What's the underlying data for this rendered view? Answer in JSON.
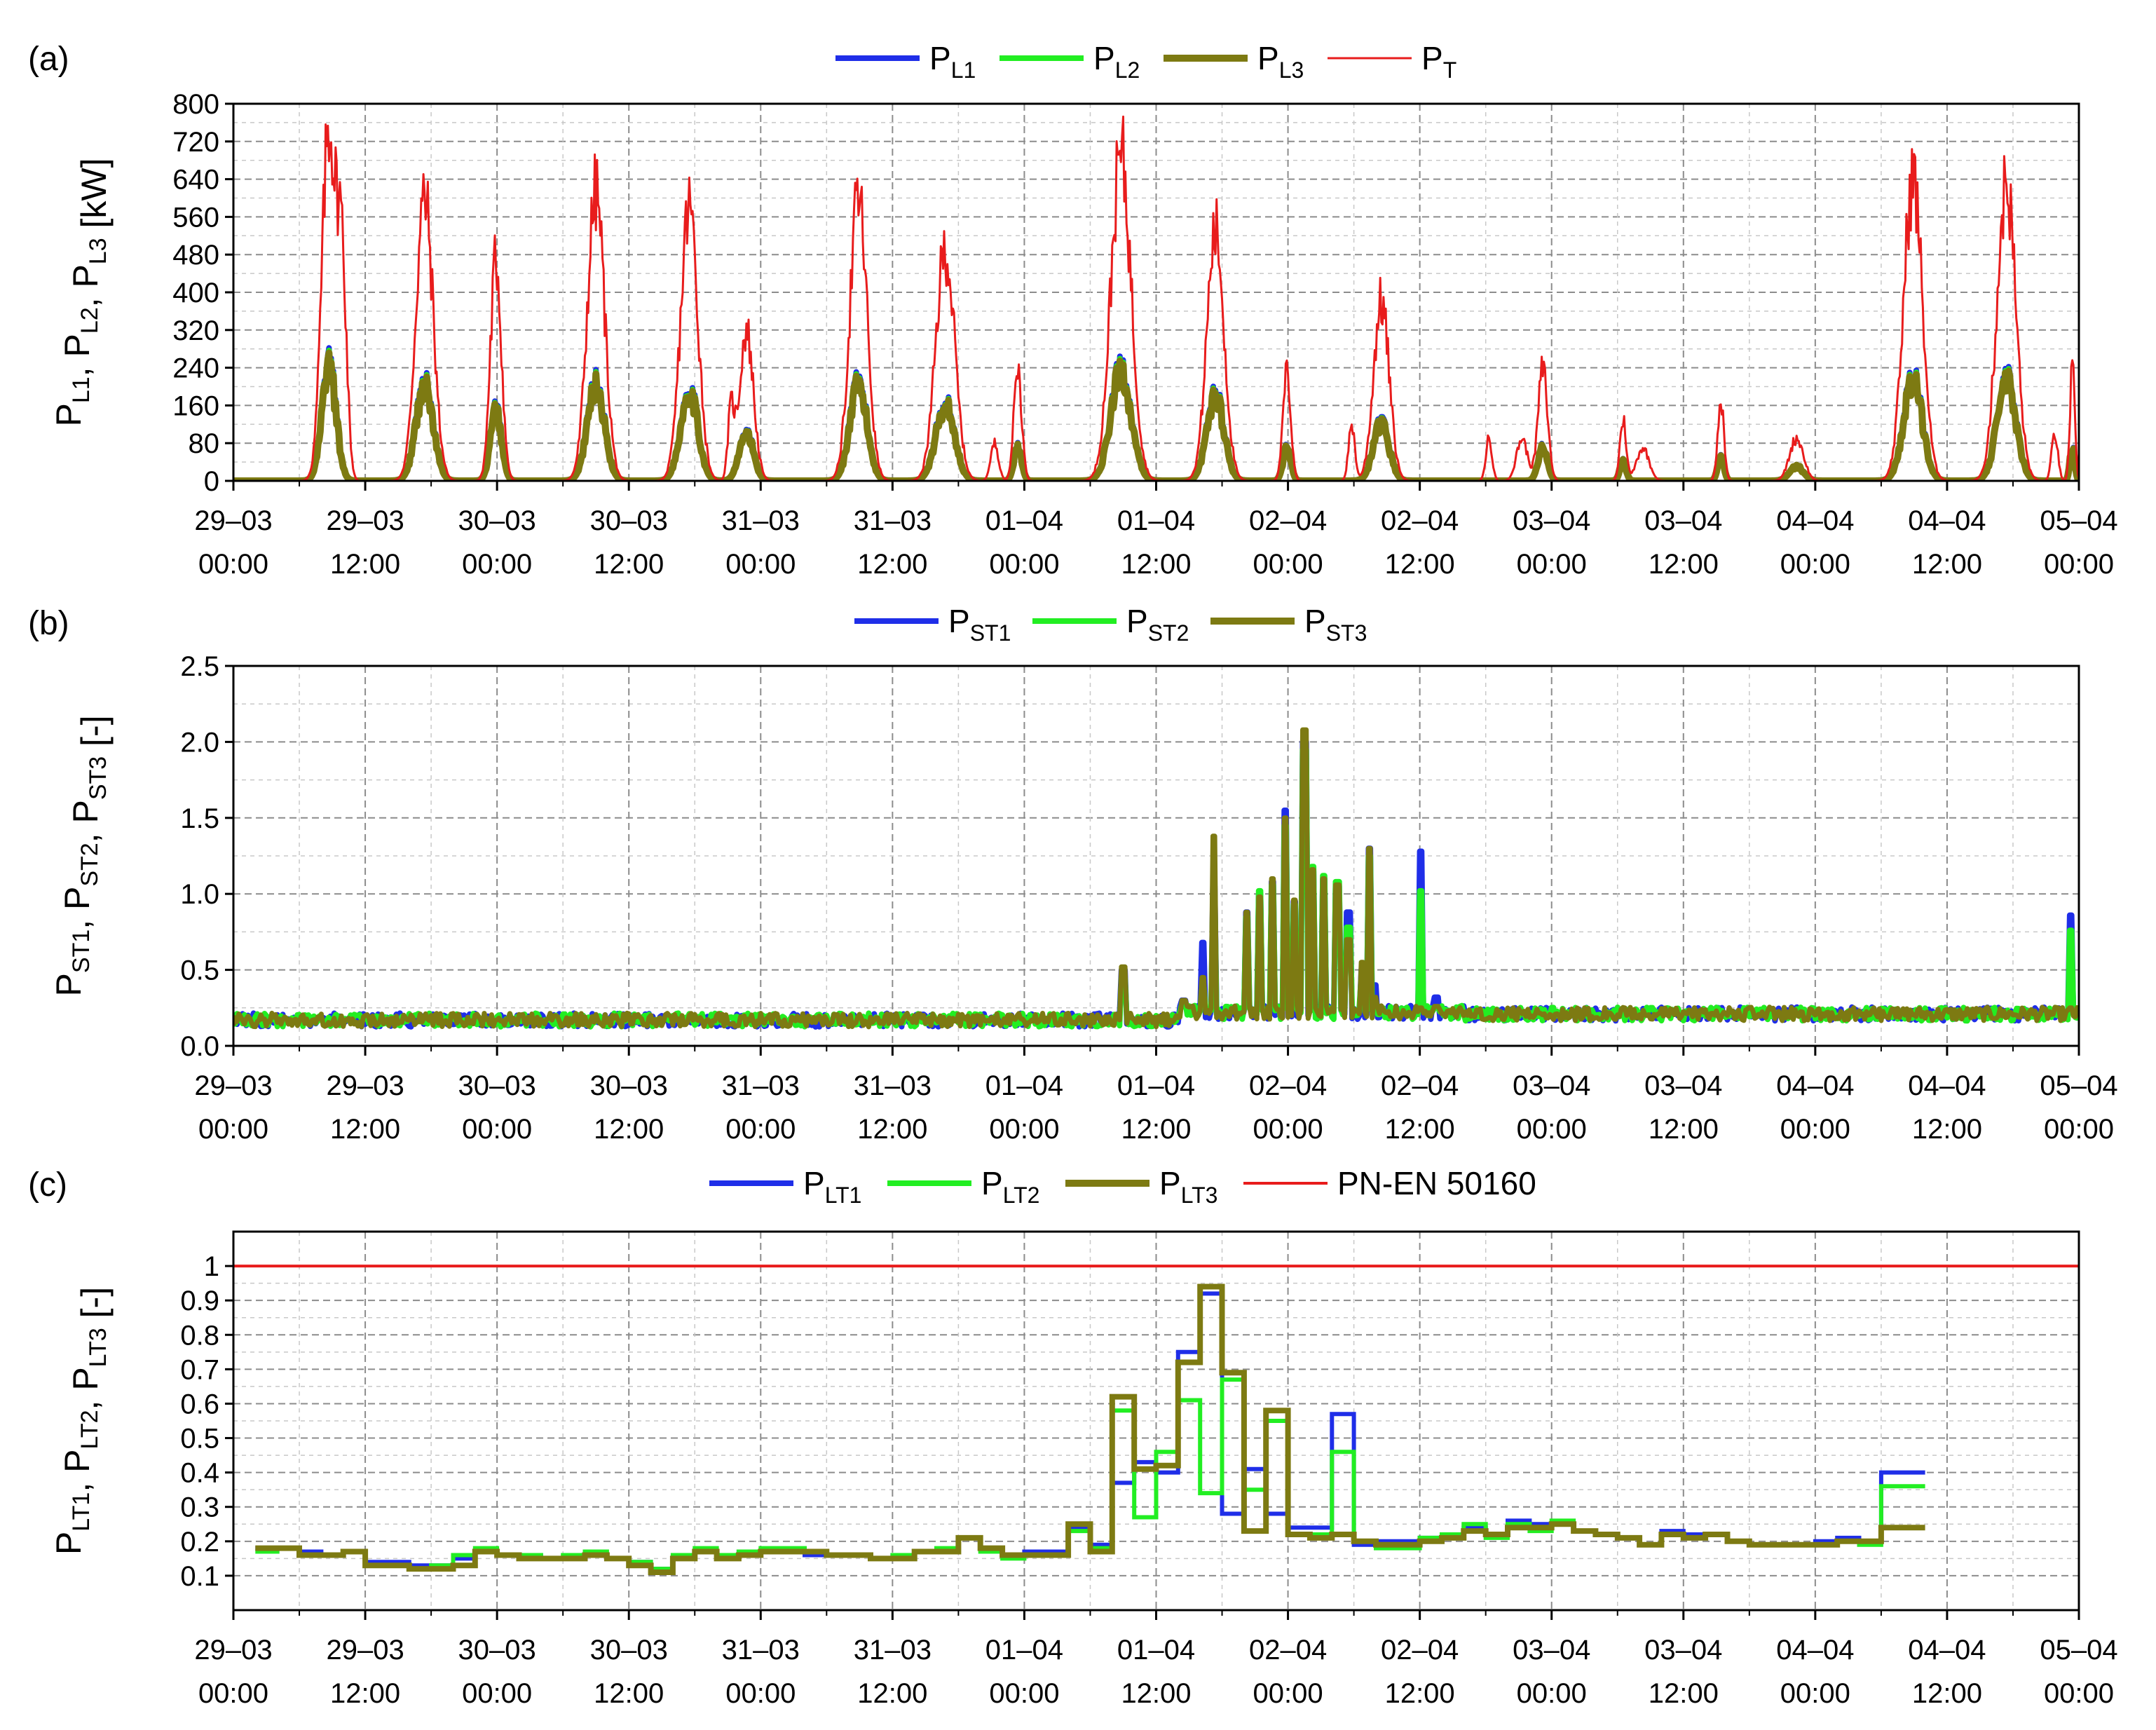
{
  "colors": {
    "L1": "#1f2ee8",
    "L2": "#22ee22",
    "L3": "#7d7a12",
    "T": "#e81c1c",
    "limit": "#e81c1c",
    "grid": "#8c8c8c",
    "grid_minor": "#c8c8c8"
  },
  "time_axis": {
    "xlim": [
      0,
      168
    ],
    "unit": "hours from 29-03 00:00",
    "ticks": [
      {
        "x": 0,
        "date": "29–03",
        "time": "00:00"
      },
      {
        "x": 12,
        "date": "29–03",
        "time": "12:00"
      },
      {
        "x": 24,
        "date": "30–03",
        "time": "00:00"
      },
      {
        "x": 36,
        "date": "30–03",
        "time": "12:00"
      },
      {
        "x": 48,
        "date": "31–03",
        "time": "00:00"
      },
      {
        "x": 60,
        "date": "31–03",
        "time": "12:00"
      },
      {
        "x": 72,
        "date": "01–04",
        "time": "00:00"
      },
      {
        "x": 84,
        "date": "01–04",
        "time": "12:00"
      },
      {
        "x": 96,
        "date": "02–04",
        "time": "00:00"
      },
      {
        "x": 108,
        "date": "02–04",
        "time": "12:00"
      },
      {
        "x": 120,
        "date": "03–04",
        "time": "00:00"
      },
      {
        "x": 132,
        "date": "03–04",
        "time": "12:00"
      },
      {
        "x": 144,
        "date": "04–04",
        "time": "00:00"
      },
      {
        "x": 156,
        "date": "04–04",
        "time": "12:00"
      },
      {
        "x": 168,
        "date": "05–04",
        "time": "00:00"
      }
    ]
  },
  "chart_data": [
    {
      "id": "a",
      "panel_label": "(a)",
      "type": "line",
      "ylabel_parts": [
        [
          "P",
          "L1"
        ],
        [
          ", P",
          "L2"
        ],
        [
          ", P",
          "L3"
        ],
        [
          " [kW]",
          ""
        ]
      ],
      "ylim": [
        0,
        800
      ],
      "yticks": [
        0,
        80,
        160,
        240,
        320,
        400,
        480,
        560,
        640,
        720,
        800
      ],
      "legend": [
        {
          "key": "L1",
          "base": "P",
          "sub": "L1",
          "width": 8
        },
        {
          "key": "L2",
          "base": "P",
          "sub": "L2",
          "width": 8
        },
        {
          "key": "L3",
          "base": "P",
          "sub": "L3",
          "width": 10
        },
        {
          "key": "T",
          "base": "P",
          "sub": "T",
          "width": 3
        }
      ],
      "series": [
        {
          "key": "T",
          "name": "P_T",
          "width": 3,
          "peaks": [
            {
              "t": 8.7,
              "v": 750,
              "w": 0.9
            },
            {
              "t": 9.9,
              "v": 420,
              "w": 0.6
            },
            {
              "t": 17.4,
              "v": 600,
              "w": 1.1
            },
            {
              "t": 23.9,
              "v": 470,
              "w": 0.7
            },
            {
              "t": 33.0,
              "v": 610,
              "w": 1.1
            },
            {
              "t": 41.5,
              "v": 580,
              "w": 1.1
            },
            {
              "t": 46.7,
              "v": 320,
              "w": 0.9
            },
            {
              "t": 45.3,
              "v": 140,
              "w": 0.4
            },
            {
              "t": 56.9,
              "v": 600,
              "w": 1.1
            },
            {
              "t": 64.8,
              "v": 490,
              "w": 1.2
            },
            {
              "t": 71.4,
              "v": 240,
              "w": 0.5
            },
            {
              "t": 69.3,
              "v": 80,
              "w": 0.5
            },
            {
              "t": 80.8,
              "v": 690,
              "w": 1.3
            },
            {
              "t": 89.4,
              "v": 530,
              "w": 1.1
            },
            {
              "t": 95.9,
              "v": 230,
              "w": 0.5
            },
            {
              "t": 104.5,
              "v": 380,
              "w": 1.0
            },
            {
              "t": 101.8,
              "v": 120,
              "w": 0.4
            },
            {
              "t": 119.2,
              "v": 240,
              "w": 0.6
            },
            {
              "t": 117.3,
              "v": 90,
              "w": 0.7
            },
            {
              "t": 114.3,
              "v": 90,
              "w": 0.4
            },
            {
              "t": 126.5,
              "v": 130,
              "w": 0.4
            },
            {
              "t": 128.3,
              "v": 70,
              "w": 0.8
            },
            {
              "t": 135.4,
              "v": 170,
              "w": 0.4
            },
            {
              "t": 142.3,
              "v": 90,
              "w": 0.9
            },
            {
              "t": 152.9,
              "v": 640,
              "w": 1.2
            },
            {
              "t": 161.4,
              "v": 630,
              "w": 1.2
            },
            {
              "t": 167.4,
              "v": 240,
              "w": 0.3
            },
            {
              "t": 165.8,
              "v": 100,
              "w": 0.4
            }
          ]
        },
        {
          "key": "L3",
          "name": "P_L3",
          "width": 10,
          "peaks": [
            {
              "t": 8.7,
              "v": 240,
              "w": 0.9
            },
            {
              "t": 17.4,
              "v": 200,
              "w": 1.1
            },
            {
              "t": 23.9,
              "v": 150,
              "w": 0.7
            },
            {
              "t": 33.0,
              "v": 200,
              "w": 1.1
            },
            {
              "t": 41.5,
              "v": 190,
              "w": 1.1
            },
            {
              "t": 46.7,
              "v": 100,
              "w": 0.9
            },
            {
              "t": 56.9,
              "v": 200,
              "w": 1.1
            },
            {
              "t": 64.8,
              "v": 160,
              "w": 1.2
            },
            {
              "t": 71.4,
              "v": 70,
              "w": 0.5
            },
            {
              "t": 80.8,
              "v": 230,
              "w": 1.3
            },
            {
              "t": 89.4,
              "v": 180,
              "w": 1.1
            },
            {
              "t": 95.9,
              "v": 70,
              "w": 0.5
            },
            {
              "t": 104.5,
              "v": 120,
              "w": 1.0
            },
            {
              "t": 119.2,
              "v": 70,
              "w": 0.6
            },
            {
              "t": 126.5,
              "v": 40,
              "w": 0.4
            },
            {
              "t": 135.4,
              "v": 50,
              "w": 0.4
            },
            {
              "t": 142.3,
              "v": 30,
              "w": 0.9
            },
            {
              "t": 152.9,
              "v": 210,
              "w": 1.2
            },
            {
              "t": 161.4,
              "v": 210,
              "w": 1.2
            },
            {
              "t": 167.4,
              "v": 70,
              "w": 0.3
            }
          ]
        }
      ]
    },
    {
      "id": "b",
      "panel_label": "(b)",
      "type": "line",
      "ylabel_parts": [
        [
          "P",
          "ST1"
        ],
        [
          ", P",
          "ST2"
        ],
        [
          ", P",
          "ST3"
        ],
        [
          " [-]",
          ""
        ]
      ],
      "ylim": [
        0,
        2.5
      ],
      "yticks": [
        0.0,
        0.5,
        1.0,
        1.5,
        2.0,
        2.5
      ],
      "ytick_labels": [
        "0.0",
        "0.5",
        "1.0",
        "1.5",
        "2.0",
        "2.5"
      ],
      "legend": [
        {
          "key": "L1",
          "base": "P",
          "sub": "ST1",
          "width": 8
        },
        {
          "key": "L2",
          "base": "P",
          "sub": "ST2",
          "width": 8
        },
        {
          "key": "L3",
          "base": "P",
          "sub": "ST3",
          "width": 10
        }
      ],
      "baseline": 0.17,
      "spikes": [
        {
          "t": 81.0,
          "L1": 0.5,
          "L2": 0.45,
          "L3": 0.52
        },
        {
          "t": 86.5,
          "L1": 0.3,
          "L2": 0.28,
          "L3": 0.3
        },
        {
          "t": 88.3,
          "L1": 0.68,
          "L2": 0.4,
          "L3": 0.45
        },
        {
          "t": 89.3,
          "L1": 1.05,
          "L2": 1.0,
          "L3": 1.38
        },
        {
          "t": 92.2,
          "L1": 0.88,
          "L2": 0.85,
          "L3": 0.88
        },
        {
          "t": 93.4,
          "L1": 1.0,
          "L2": 1.02,
          "L3": 0.98
        },
        {
          "t": 94.6,
          "L1": 1.08,
          "L2": 1.06,
          "L3": 1.1
        },
        {
          "t": 95.8,
          "L1": 1.55,
          "L2": 1.45,
          "L3": 1.5
        },
        {
          "t": 96.6,
          "L1": 0.95,
          "L2": 0.93,
          "L3": 0.96
        },
        {
          "t": 97.5,
          "L1": 2.0,
          "L2": 1.95,
          "L3": 2.08
        },
        {
          "t": 98.3,
          "L1": 1.15,
          "L2": 1.18,
          "L3": 1.16
        },
        {
          "t": 99.3,
          "L1": 1.1,
          "L2": 1.12,
          "L3": 1.1
        },
        {
          "t": 100.5,
          "L1": 1.05,
          "L2": 1.08,
          "L3": 1.06
        },
        {
          "t": 101.5,
          "L1": 0.88,
          "L2": 0.78,
          "L3": 0.7
        },
        {
          "t": 102.7,
          "L1": 0.5,
          "L2": 0.45,
          "L3": 0.55
        },
        {
          "t": 103.4,
          "L1": 1.3,
          "L2": 1.25,
          "L3": 1.3
        },
        {
          "t": 103.9,
          "L1": 0.4,
          "L2": 0.3,
          "L3": 0.32
        },
        {
          "t": 108.1,
          "L1": 1.28,
          "L2": 1.02,
          "L3": 0.25
        },
        {
          "t": 109.5,
          "L1": 0.32,
          "L2": 0.25,
          "L3": 0.26
        },
        {
          "t": 167.2,
          "L1": 0.86,
          "L2": 0.76,
          "L3": 0.25
        }
      ]
    },
    {
      "id": "c",
      "panel_label": "(c)",
      "type": "line",
      "ylabel_parts": [
        [
          "P",
          "LT1"
        ],
        [
          ", P",
          "LT2"
        ],
        [
          ", P",
          "LT3"
        ],
        [
          " [-]",
          ""
        ]
      ],
      "ylim": [
        0,
        1.1
      ],
      "yticks": [
        0.1,
        0.2,
        0.3,
        0.4,
        0.5,
        0.6,
        0.7,
        0.8,
        0.9,
        1.0
      ],
      "ytick_labels": [
        "0.1",
        "0.2",
        "0.3",
        "0.4",
        "0.5",
        "0.6",
        "0.7",
        "0.8",
        "0.9",
        "1"
      ],
      "legend": [
        {
          "key": "L1",
          "base": "P",
          "sub": "LT1",
          "width": 8
        },
        {
          "key": "L2",
          "base": "P",
          "sub": "LT2",
          "width": 8
        },
        {
          "key": "L3",
          "base": "P",
          "sub": "LT3",
          "width": 10
        },
        {
          "key": "limit",
          "base": "PN-EN 50160",
          "sub": "",
          "width": 4
        }
      ],
      "limit_value": 1.0,
      "step_start": 2,
      "step_hours": 2,
      "series": [
        {
          "key": "L1",
          "name": "P_LT1",
          "width": 6,
          "values": [
            0.18,
            0.18,
            0.17,
            0.16,
            0.17,
            0.14,
            0.14,
            0.13,
            0.13,
            0.15,
            0.17,
            0.16,
            0.16,
            0.15,
            0.15,
            0.16,
            0.15,
            0.14,
            0.12,
            0.15,
            0.17,
            0.15,
            0.17,
            0.17,
            0.17,
            0.16,
            0.16,
            0.16,
            0.15,
            0.16,
            0.17,
            0.17,
            0.21,
            0.18,
            0.16,
            0.17,
            0.17,
            0.24,
            0.19,
            0.37,
            0.43,
            0.4,
            0.75,
            0.92,
            0.28,
            0.41,
            0.28,
            0.24,
            0.24,
            0.57,
            0.19,
            0.2,
            0.2,
            0.21,
            0.22,
            0.24,
            0.22,
            0.26,
            0.25,
            0.25,
            0.23,
            0.22,
            0.21,
            0.19,
            0.23,
            0.22,
            0.22,
            0.2,
            0.19,
            0.19,
            0.19,
            0.2,
            0.21,
            0.2,
            0.4,
            0.4
          ]
        },
        {
          "key": "L2",
          "name": "P_LT2",
          "width": 6,
          "values": [
            0.17,
            0.18,
            0.16,
            0.16,
            0.17,
            0.13,
            0.13,
            0.12,
            0.13,
            0.16,
            0.18,
            0.16,
            0.16,
            0.15,
            0.16,
            0.17,
            0.15,
            0.14,
            0.12,
            0.16,
            0.18,
            0.16,
            0.17,
            0.18,
            0.18,
            0.17,
            0.16,
            0.16,
            0.15,
            0.16,
            0.17,
            0.18,
            0.21,
            0.17,
            0.15,
            0.16,
            0.16,
            0.23,
            0.18,
            0.58,
            0.27,
            0.46,
            0.61,
            0.34,
            0.67,
            0.35,
            0.55,
            0.22,
            0.22,
            0.46,
            0.2,
            0.18,
            0.18,
            0.21,
            0.22,
            0.25,
            0.21,
            0.25,
            0.23,
            0.26,
            0.23,
            0.22,
            0.21,
            0.19,
            0.22,
            0.21,
            0.22,
            0.2,
            0.19,
            0.19,
            0.19,
            0.19,
            0.2,
            0.19,
            0.36,
            0.36
          ]
        },
        {
          "key": "L3",
          "name": "P_LT3",
          "width": 8,
          "values": [
            0.18,
            0.18,
            0.16,
            0.16,
            0.17,
            0.13,
            0.13,
            0.12,
            0.12,
            0.13,
            0.17,
            0.16,
            0.15,
            0.15,
            0.15,
            0.16,
            0.15,
            0.13,
            0.11,
            0.15,
            0.17,
            0.15,
            0.16,
            0.17,
            0.17,
            0.17,
            0.16,
            0.16,
            0.15,
            0.15,
            0.17,
            0.17,
            0.21,
            0.18,
            0.16,
            0.16,
            0.16,
            0.25,
            0.17,
            0.62,
            0.41,
            0.42,
            0.72,
            0.94,
            0.69,
            0.23,
            0.58,
            0.22,
            0.21,
            0.22,
            0.2,
            0.19,
            0.19,
            0.2,
            0.21,
            0.23,
            0.22,
            0.24,
            0.24,
            0.25,
            0.23,
            0.22,
            0.21,
            0.19,
            0.22,
            0.21,
            0.22,
            0.2,
            0.19,
            0.19,
            0.19,
            0.19,
            0.2,
            0.2,
            0.24,
            0.24
          ]
        }
      ]
    }
  ]
}
